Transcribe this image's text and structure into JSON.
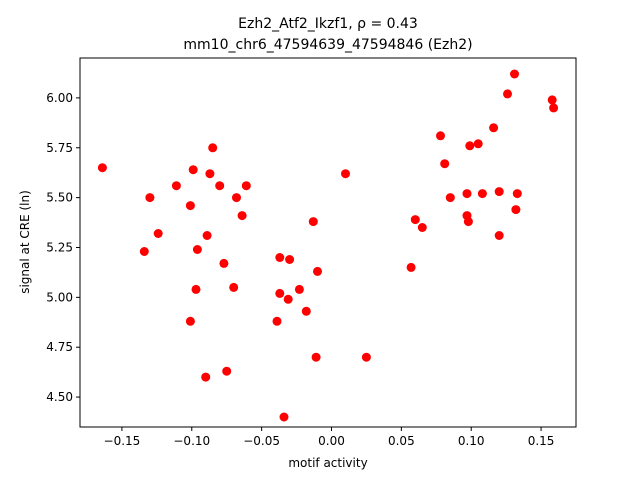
{
  "chart_data": {
    "type": "scatter",
    "title": "Ezh2_Atf2_Ikzf1, ρ = 0.43",
    "subtitle": "mm10_chr6_47594639_47594846 (Ezh2)",
    "xlabel": "motif activity",
    "ylabel": "signal at CRE (ln)",
    "xlim": [
      -0.18,
      0.175
    ],
    "ylim": [
      4.35,
      6.2
    ],
    "xticks": [
      -0.15,
      -0.1,
      -0.05,
      0.0,
      0.05,
      0.1,
      0.15
    ],
    "xtick_labels": [
      "−0.15",
      "−0.10",
      "−0.05",
      "0.00",
      "0.05",
      "0.10",
      "0.15"
    ],
    "yticks": [
      4.5,
      4.75,
      5.0,
      5.25,
      5.5,
      5.75,
      6.0
    ],
    "ytick_labels": [
      "4.50",
      "4.75",
      "5.00",
      "5.25",
      "5.50",
      "5.75",
      "6.00"
    ],
    "grid": false,
    "marker_color": "#ff0000",
    "series": [
      {
        "points": [
          [
            -0.164,
            5.65
          ],
          [
            -0.134,
            5.23
          ],
          [
            -0.13,
            5.5
          ],
          [
            -0.124,
            5.32
          ],
          [
            -0.111,
            5.56
          ],
          [
            -0.101,
            5.46
          ],
          [
            -0.101,
            4.88
          ],
          [
            -0.099,
            5.64
          ],
          [
            -0.097,
            5.04
          ],
          [
            -0.096,
            5.24
          ],
          [
            -0.09,
            4.6
          ],
          [
            -0.089,
            5.31
          ],
          [
            -0.087,
            5.62
          ],
          [
            -0.085,
            5.75
          ],
          [
            -0.08,
            5.56
          ],
          [
            -0.077,
            5.17
          ],
          [
            -0.075,
            4.63
          ],
          [
            -0.07,
            5.05
          ],
          [
            -0.068,
            5.5
          ],
          [
            -0.064,
            5.41
          ],
          [
            -0.061,
            5.56
          ],
          [
            -0.039,
            4.88
          ],
          [
            -0.037,
            5.2
          ],
          [
            -0.037,
            5.02
          ],
          [
            -0.034,
            4.4
          ],
          [
            -0.031,
            4.99
          ],
          [
            -0.03,
            5.19
          ],
          [
            -0.023,
            5.04
          ],
          [
            -0.018,
            4.93
          ],
          [
            -0.013,
            5.38
          ],
          [
            -0.011,
            4.7
          ],
          [
            -0.01,
            5.13
          ],
          [
            0.01,
            5.62
          ],
          [
            0.025,
            4.7
          ],
          [
            0.057,
            5.15
          ],
          [
            0.06,
            5.39
          ],
          [
            0.065,
            5.35
          ],
          [
            0.078,
            5.81
          ],
          [
            0.081,
            5.67
          ],
          [
            0.085,
            5.5
          ],
          [
            0.097,
            5.41
          ],
          [
            0.097,
            5.52
          ],
          [
            0.098,
            5.38
          ],
          [
            0.099,
            5.76
          ],
          [
            0.105,
            5.77
          ],
          [
            0.108,
            5.52
          ],
          [
            0.116,
            5.85
          ],
          [
            0.12,
            5.31
          ],
          [
            0.12,
            5.53
          ],
          [
            0.126,
            6.02
          ],
          [
            0.131,
            6.12
          ],
          [
            0.132,
            5.44
          ],
          [
            0.133,
            5.52
          ],
          [
            0.158,
            5.99
          ],
          [
            0.159,
            5.95
          ]
        ]
      }
    ]
  }
}
